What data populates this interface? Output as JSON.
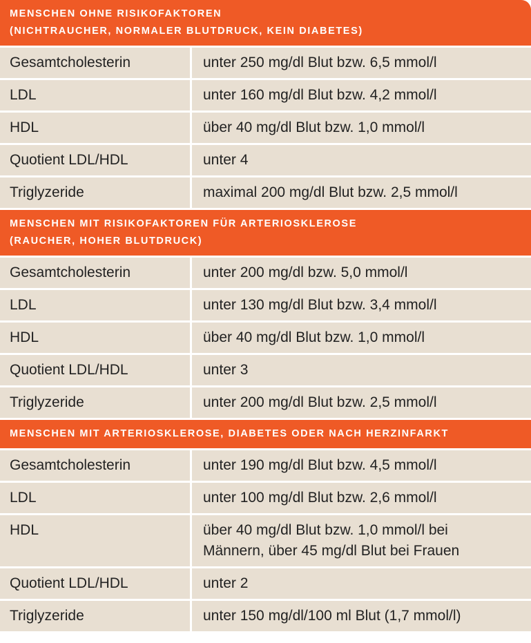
{
  "sections": [
    {
      "title": [
        "MENSCHEN OHNE RISIKOFAKTOREN",
        "(NICHTRAUCHER, NORMALER BLUTDRUCK, KEIN DIABETES)"
      ],
      "rows": [
        [
          [
            "Gesamtcholesterin"
          ],
          [
            "unter 250 mg/dl Blut bzw. 6,5 mmol/l"
          ]
        ],
        [
          [
            "LDL"
          ],
          [
            "unter 160 mg/dl Blut bzw. 4,2 mmol/l"
          ]
        ],
        [
          [
            "HDL"
          ],
          [
            "über 40 mg/dl Blut bzw. 1,0 mmol/l"
          ]
        ],
        [
          [
            "Quotient LDL/HDL"
          ],
          [
            "unter 4"
          ]
        ],
        [
          [
            "Triglyzeride"
          ],
          [
            "maximal 200 mg/dl Blut bzw. 2,5 mmol/l"
          ]
        ]
      ]
    },
    {
      "title": [
        "MENSCHEN MIT RISIKOFAKTOREN FÜR ARTERIOSKLEROSE",
        "(RAUCHER, HOHER BLUTDRUCK)"
      ],
      "rows": [
        [
          [
            "Gesamtcholesterin"
          ],
          [
            "unter 200 mg/dl bzw. 5,0 mmol/l"
          ]
        ],
        [
          [
            "LDL"
          ],
          [
            "unter 130 mg/dl Blut bzw. 3,4 mmol/l"
          ]
        ],
        [
          [
            "HDL"
          ],
          [
            "über 40 mg/dl Blut bzw. 1,0 mmol/l"
          ]
        ],
        [
          [
            "Quotient LDL/HDL"
          ],
          [
            "unter 3"
          ]
        ],
        [
          [
            "Triglyzeride"
          ],
          [
            "unter 200 mg/dl Blut bzw. 2,5 mmol/l"
          ]
        ]
      ]
    },
    {
      "title": [
        "MENSCHEN MIT ARTERIOSKLEROSE, DIABETES ODER NACH HERZINFARKT"
      ],
      "rows": [
        [
          [
            "Gesamtcholesterin"
          ],
          [
            "unter 190 mg/dl Blut bzw. 4,5 mmol/l"
          ]
        ],
        [
          [
            "LDL"
          ],
          [
            "unter 100 mg/dl Blut bzw. 2,6 mmol/l"
          ]
        ],
        [
          [
            "HDL"
          ],
          [
            "über 40 mg/dl Blut bzw. 1,0 mmol/l bei",
            "Männern, über 45 mg/dl Blut bei Frauen"
          ]
        ],
        [
          [
            "Quotient LDL/HDL"
          ],
          [
            "unter 2"
          ]
        ],
        [
          [
            "Triglyzeride"
          ],
          [
            "unter 150 mg/dl/100 ml Blut (1,7 mmol/l)"
          ]
        ]
      ]
    }
  ]
}
